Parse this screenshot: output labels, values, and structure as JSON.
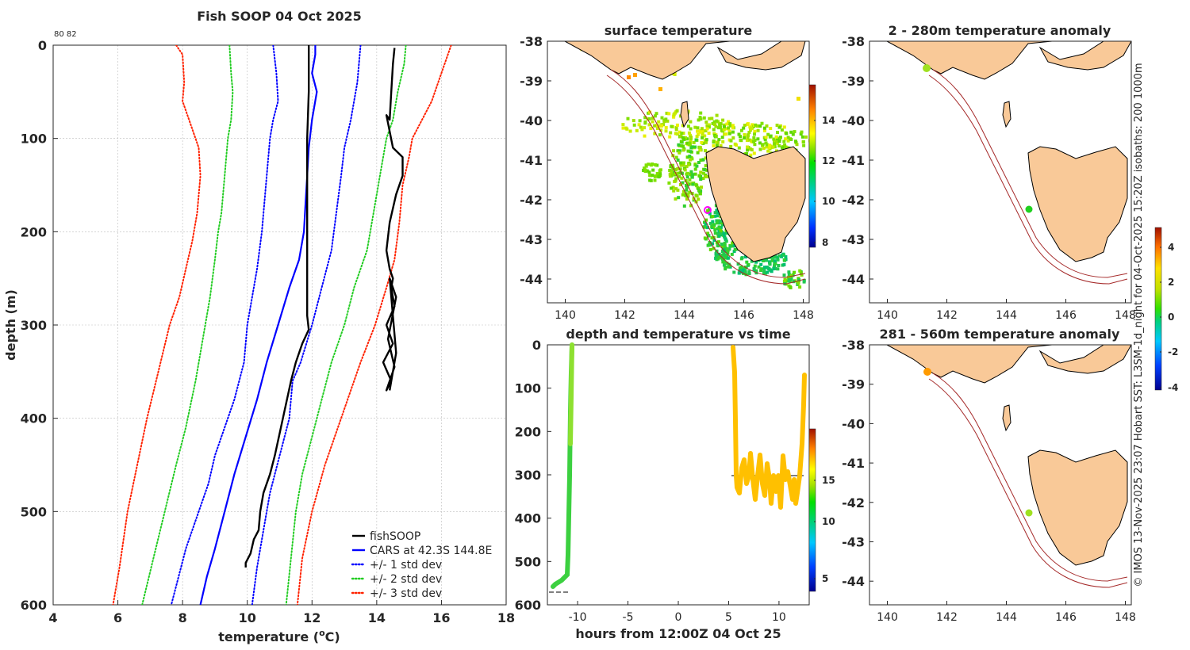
{
  "colors": {
    "land": "#f9c998",
    "isobath": "#a52a2a",
    "fish": "#000000",
    "cars": "#0000ff",
    "std2": "#22cc22",
    "std3": "#ff2200"
  },
  "chart_data": [
    {
      "id": "profile",
      "type": "line",
      "title": "Fish SOOP 04 Oct 2025",
      "corner_note": "80 82",
      "xlabel_main": "temperature (",
      "xlabel_sup": "o",
      "xlabel_end": "C)",
      "ylabel": "depth (m)",
      "xlim": [
        4,
        18
      ],
      "ylim": [
        0,
        600
      ],
      "xticks": [
        "4",
        "6",
        "8",
        "10",
        "12",
        "14",
        "16",
        "18"
      ],
      "yticks": [
        "0",
        "100",
        "200",
        "300",
        "400",
        "500",
        "600"
      ],
      "legend": [
        {
          "label": "fishSOOP",
          "style": "solid",
          "color": "#000000"
        },
        {
          "label": "CARS at 42.3S 144.8E",
          "style": "solid",
          "color": "#0000ff"
        },
        {
          "label": "+/- 1 std dev",
          "style": "dot",
          "color": "#0000ff"
        },
        {
          "label": "+/- 2 std dev",
          "style": "dot",
          "color": "#22cc22"
        },
        {
          "label": "+/- 3 std dev",
          "style": "dot",
          "color": "#ff2200"
        }
      ],
      "series": [
        {
          "name": "CARS",
          "points": [
            [
              12.1,
              0
            ],
            [
              12.1,
              10
            ],
            [
              12.0,
              30
            ],
            [
              12.15,
              50
            ],
            [
              12.0,
              80
            ],
            [
              11.9,
              110
            ],
            [
              11.85,
              140
            ],
            [
              11.8,
              170
            ],
            [
              11.75,
              200
            ],
            [
              11.6,
              230
            ],
            [
              11.3,
              260
            ],
            [
              10.95,
              300
            ],
            [
              10.6,
              340
            ],
            [
              10.3,
              380
            ],
            [
              9.95,
              420
            ],
            [
              9.6,
              460
            ],
            [
              9.3,
              500
            ],
            [
              9.0,
              540
            ],
            [
              8.75,
              570
            ],
            [
              8.55,
              600
            ]
          ]
        },
        {
          "name": "m1",
          "points": [
            [
              10.8,
              0
            ],
            [
              10.9,
              30
            ],
            [
              10.95,
              60
            ],
            [
              10.8,
              80
            ],
            [
              10.7,
              100
            ],
            [
              10.6,
              140
            ],
            [
              10.45,
              200
            ],
            [
              10.3,
              240
            ],
            [
              10.2,
              260
            ],
            [
              10.1,
              280
            ],
            [
              10.0,
              300
            ],
            [
              9.9,
              340
            ],
            [
              9.6,
              380
            ],
            [
              9.4,
              400
            ],
            [
              9.0,
              440
            ],
            [
              8.8,
              470
            ],
            [
              8.5,
              500
            ],
            [
              8.1,
              540
            ],
            [
              7.8,
              580
            ],
            [
              7.65,
              600
            ]
          ]
        },
        {
          "name": "p1",
          "points": [
            [
              13.5,
              0
            ],
            [
              13.4,
              40
            ],
            [
              13.2,
              80
            ],
            [
              13.0,
              110
            ],
            [
              12.9,
              140
            ],
            [
              12.75,
              180
            ],
            [
              12.6,
              220
            ],
            [
              12.3,
              260
            ],
            [
              12.0,
              300
            ],
            [
              11.65,
              340
            ],
            [
              11.4,
              360
            ],
            [
              11.3,
              400
            ],
            [
              11.0,
              440
            ],
            [
              10.7,
              480
            ],
            [
              10.5,
              520
            ],
            [
              10.3,
              560
            ],
            [
              10.15,
              600
            ]
          ]
        },
        {
          "name": "m2",
          "points": [
            [
              9.45,
              0
            ],
            [
              9.5,
              30
            ],
            [
              9.55,
              50
            ],
            [
              9.5,
              80
            ],
            [
              9.4,
              100
            ],
            [
              9.3,
              140
            ],
            [
              9.2,
              180
            ],
            [
              9.1,
              200
            ],
            [
              9.0,
              230
            ],
            [
              8.85,
              270
            ],
            [
              8.7,
              300
            ],
            [
              8.4,
              360
            ],
            [
              8.1,
              410
            ],
            [
              7.8,
              450
            ],
            [
              7.45,
              500
            ],
            [
              7.1,
              550
            ],
            [
              6.75,
              600
            ]
          ]
        },
        {
          "name": "p2",
          "points": [
            [
              14.9,
              0
            ],
            [
              14.85,
              20
            ],
            [
              14.65,
              50
            ],
            [
              14.5,
              80
            ],
            [
              14.3,
              100
            ],
            [
              14.1,
              140
            ],
            [
              13.9,
              180
            ],
            [
              13.7,
              220
            ],
            [
              13.3,
              260
            ],
            [
              13.0,
              300
            ],
            [
              12.6,
              340
            ],
            [
              12.3,
              380
            ],
            [
              12.0,
              420
            ],
            [
              11.7,
              460
            ],
            [
              11.5,
              500
            ],
            [
              11.35,
              550
            ],
            [
              11.2,
              600
            ]
          ]
        },
        {
          "name": "m3",
          "points": [
            [
              7.8,
              0
            ],
            [
              8.0,
              10
            ],
            [
              8.05,
              40
            ],
            [
              8.0,
              60
            ],
            [
              8.2,
              80
            ],
            [
              8.5,
              110
            ],
            [
              8.55,
              140
            ],
            [
              8.45,
              180
            ],
            [
              8.3,
              210
            ],
            [
              8.1,
              240
            ],
            [
              7.9,
              270
            ],
            [
              7.6,
              300
            ],
            [
              7.25,
              350
            ],
            [
              6.9,
              400
            ],
            [
              6.6,
              450
            ],
            [
              6.3,
              500
            ],
            [
              6.05,
              560
            ],
            [
              5.85,
              600
            ]
          ]
        },
        {
          "name": "p3",
          "points": [
            [
              16.3,
              0
            ],
            [
              16.1,
              20
            ],
            [
              15.9,
              40
            ],
            [
              15.7,
              60
            ],
            [
              15.4,
              80
            ],
            [
              15.1,
              100
            ],
            [
              15.0,
              120
            ],
            [
              14.8,
              150
            ],
            [
              14.7,
              190
            ],
            [
              14.55,
              230
            ],
            [
              14.3,
              260
            ],
            [
              13.95,
              300
            ],
            [
              13.5,
              340
            ],
            [
              13.2,
              370
            ],
            [
              12.9,
              400
            ],
            [
              12.4,
              450
            ],
            [
              12.0,
              500
            ],
            [
              11.7,
              550
            ],
            [
              11.55,
              600
            ]
          ]
        },
        {
          "name": "fishSOOP",
          "points": [
            [
              14.55,
              3
            ],
            [
              14.5,
              20
            ],
            [
              14.45,
              50
            ],
            [
              14.4,
              80
            ],
            [
              14.3,
              75
            ],
            [
              14.5,
              110
            ],
            [
              14.8,
              120
            ],
            [
              14.8,
              140
            ],
            [
              14.6,
              160
            ],
            [
              14.4,
              190
            ],
            [
              14.3,
              220
            ],
            [
              14.4,
              240
            ],
            [
              14.5,
              250
            ],
            [
              14.45,
              260
            ],
            [
              14.55,
              280
            ],
            [
              14.3,
              300
            ],
            [
              14.5,
              320
            ],
            [
              14.2,
              340
            ],
            [
              14.45,
              360
            ],
            [
              14.3,
              370
            ],
            [
              14.55,
              345
            ],
            [
              14.35,
              315
            ],
            [
              14.6,
              270
            ],
            [
              14.4,
              250
            ],
            [
              14.6,
              330
            ],
            [
              14.4,
              370
            ]
          ]
        },
        {
          "name": "fishSOOP_deep",
          "points": [
            [
              11.9,
              0
            ],
            [
              11.9,
              50
            ],
            [
              11.85,
              100
            ],
            [
              11.85,
              150
            ],
            [
              11.85,
              200
            ],
            [
              11.85,
              260
            ],
            [
              11.85,
              290
            ],
            [
              11.9,
              305
            ],
            [
              11.7,
              320
            ],
            [
              11.5,
              340
            ],
            [
              11.35,
              360
            ],
            [
              11.1,
              400
            ],
            [
              10.85,
              440
            ],
            [
              10.7,
              460
            ],
            [
              10.5,
              480
            ],
            [
              10.4,
              500
            ],
            [
              10.35,
              520
            ],
            [
              10.2,
              530
            ],
            [
              10.1,
              545
            ],
            [
              9.95,
              555
            ],
            [
              9.95,
              560
            ]
          ]
        }
      ]
    },
    {
      "id": "surface",
      "type": "heatmap",
      "title": "surface temperature",
      "xticks": [
        "140",
        "142",
        "144",
        "146",
        "148"
      ],
      "yticks": [
        "-38",
        "-39",
        "-40",
        "-41",
        "-42",
        "-43",
        "-44"
      ],
      "colorbar_ticks": [
        "14",
        "12",
        "10",
        "8"
      ]
    },
    {
      "id": "depthtime",
      "type": "scatter",
      "title": "depth and temperature vs time",
      "xlabel": "hours from 12:00Z 04 Oct 25",
      "xticks": [
        "-10",
        "-5",
        "0",
        "5",
        "10"
      ],
      "yticks": [
        "0",
        "100",
        "200",
        "300",
        "400",
        "500",
        "600"
      ],
      "xlim": [
        -13,
        13
      ],
      "ylim": [
        0,
        600
      ],
      "colorbar_ticks": [
        "15",
        "10",
        "5"
      ]
    },
    {
      "id": "anom1",
      "type": "scatter",
      "title": "2 - 280m temperature anomaly",
      "xticks": [
        "140",
        "142",
        "144",
        "146",
        "148"
      ],
      "yticks": [
        "-38",
        "-39",
        "-40",
        "-41",
        "-42",
        "-43",
        "-44"
      ],
      "colorbar_ticks": [
        "4",
        "2",
        "0",
        "-2",
        "-4"
      ]
    },
    {
      "id": "anom2",
      "type": "scatter",
      "title": "281 - 560m temperature anomaly",
      "xticks": [
        "140",
        "142",
        "144",
        "146",
        "148"
      ],
      "yticks": [
        "-38",
        "-39",
        "-40",
        "-41",
        "-42",
        "-43",
        "-44"
      ]
    }
  ],
  "side_credit": "© IMOS 13-Nov-2025 23:07 Hobart SST: L3SM-1d_night for 04-Oct-2025 15:20Z isobaths: 200  1000m"
}
